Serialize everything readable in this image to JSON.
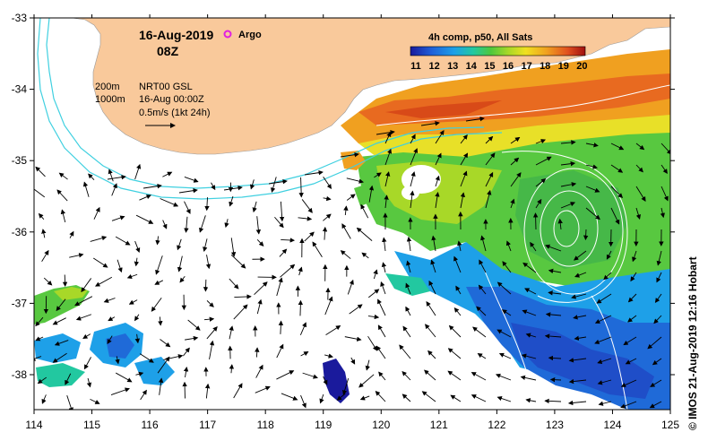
{
  "title": {
    "date": "16-Aug-2019",
    "time": "08Z",
    "argo_label": "Argo",
    "argo_color": "#e020e0"
  },
  "legend": {
    "depth_200": "200m",
    "depth_1000": "1000m",
    "altimetry": "NRT00 GSL",
    "altimetry_date": "16-Aug 00:00Z",
    "velocity_scale": "0.5m/s (1kt 24h)",
    "isobath_color": "#40d0e0"
  },
  "colorbar": {
    "title": "4h comp, p50, All Sats",
    "ticks": [
      "11",
      "12",
      "13",
      "14",
      "15",
      "16",
      "17",
      "18",
      "19",
      "20"
    ],
    "colors": [
      "#1a1a9c",
      "#1f5fd8",
      "#1ea0e8",
      "#22c8a0",
      "#4ec83c",
      "#a8d828",
      "#f0e020",
      "#f0a020",
      "#e05020",
      "#a01010"
    ]
  },
  "axes": {
    "x_ticks": [
      "114",
      "115",
      "116",
      "117",
      "118",
      "119",
      "120",
      "121",
      "122",
      "123",
      "124",
      "125"
    ],
    "y_ticks": [
      "-33",
      "-34",
      "-35",
      "-36",
      "-37",
      "-38"
    ]
  },
  "colors": {
    "land": "#f9c99b",
    "ocean_nodata": "#ffffff"
  },
  "credit": "© IMOS 21-Aug-2019 12:16 Hobart"
}
